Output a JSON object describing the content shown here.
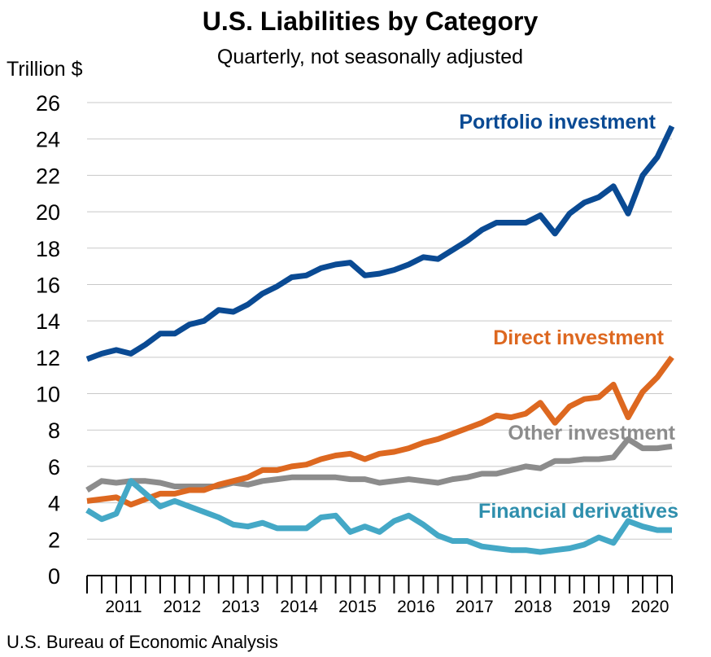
{
  "chart_data": {
    "type": "line",
    "title": "U.S. Liabilities by Category",
    "subtitle": "Quarterly, not seasonally adjusted",
    "ylabel": "Trillion $",
    "xlabel": "",
    "ylim": [
      0,
      26
    ],
    "yticks": [
      0,
      2,
      4,
      6,
      8,
      10,
      12,
      14,
      16,
      18,
      20,
      22,
      24,
      26
    ],
    "grid": true,
    "x": [
      "2010Q4",
      "2011Q1",
      "2011Q2",
      "2011Q3",
      "2011Q4",
      "2012Q1",
      "2012Q2",
      "2012Q3",
      "2012Q4",
      "2013Q1",
      "2013Q2",
      "2013Q3",
      "2013Q4",
      "2014Q1",
      "2014Q2",
      "2014Q3",
      "2014Q4",
      "2015Q1",
      "2015Q2",
      "2015Q3",
      "2015Q4",
      "2016Q1",
      "2016Q2",
      "2016Q3",
      "2016Q4",
      "2017Q1",
      "2017Q2",
      "2017Q3",
      "2017Q4",
      "2018Q1",
      "2018Q2",
      "2018Q3",
      "2018Q4",
      "2019Q1",
      "2019Q2",
      "2019Q3",
      "2019Q4",
      "2020Q1",
      "2020Q2",
      "2020Q3",
      "2020Q4"
    ],
    "year_labels": [
      "2011",
      "2012",
      "2013",
      "2014",
      "2015",
      "2016",
      "2017",
      "2018",
      "2019",
      "2020"
    ],
    "series": [
      {
        "name": "Portfolio investment",
        "color": "#0a4a93",
        "values": [
          11.9,
          12.2,
          12.4,
          12.2,
          12.7,
          13.3,
          13.3,
          13.8,
          14.0,
          14.6,
          14.5,
          14.9,
          15.5,
          15.9,
          16.4,
          16.5,
          16.9,
          17.1,
          17.2,
          16.5,
          16.6,
          16.8,
          17.1,
          17.5,
          17.4,
          17.9,
          18.4,
          19.0,
          19.4,
          19.4,
          19.4,
          19.8,
          18.8,
          19.9,
          20.5,
          20.8,
          21.4,
          19.9,
          22.0,
          23.0,
          24.7
        ]
      },
      {
        "name": "Direct investment",
        "color": "#dd6820",
        "values": [
          4.1,
          4.2,
          4.3,
          3.9,
          4.2,
          4.5,
          4.5,
          4.7,
          4.7,
          5.0,
          5.2,
          5.4,
          5.8,
          5.8,
          6.0,
          6.1,
          6.4,
          6.6,
          6.7,
          6.4,
          6.7,
          6.8,
          7.0,
          7.3,
          7.5,
          7.8,
          8.1,
          8.4,
          8.8,
          8.7,
          8.9,
          9.5,
          8.4,
          9.3,
          9.7,
          9.8,
          10.5,
          8.7,
          10.1,
          10.9,
          12.0
        ]
      },
      {
        "name": "Other investment",
        "color": "#8c8c8c",
        "values": [
          4.7,
          5.2,
          5.1,
          5.2,
          5.2,
          5.1,
          4.9,
          4.9,
          4.9,
          4.9,
          5.1,
          5.0,
          5.2,
          5.3,
          5.4,
          5.4,
          5.4,
          5.4,
          5.3,
          5.3,
          5.1,
          5.2,
          5.3,
          5.2,
          5.1,
          5.3,
          5.4,
          5.6,
          5.6,
          5.8,
          6.0,
          5.9,
          6.3,
          6.3,
          6.4,
          6.4,
          6.5,
          7.5,
          7.0,
          7.0,
          7.1
        ]
      },
      {
        "name": "Financial derivatives",
        "color": "#44a8c6",
        "values": [
          3.6,
          3.1,
          3.4,
          5.2,
          4.5,
          3.8,
          4.1,
          3.8,
          3.5,
          3.2,
          2.8,
          2.7,
          2.9,
          2.6,
          2.6,
          2.6,
          3.2,
          3.3,
          2.4,
          2.7,
          2.4,
          3.0,
          3.3,
          2.8,
          2.2,
          1.9,
          1.9,
          1.6,
          1.5,
          1.4,
          1.4,
          1.3,
          1.4,
          1.5,
          1.7,
          2.1,
          1.8,
          3.0,
          2.7,
          2.5,
          2.5
        ]
      }
    ],
    "source": "U.S. Bureau of Economic Analysis"
  }
}
